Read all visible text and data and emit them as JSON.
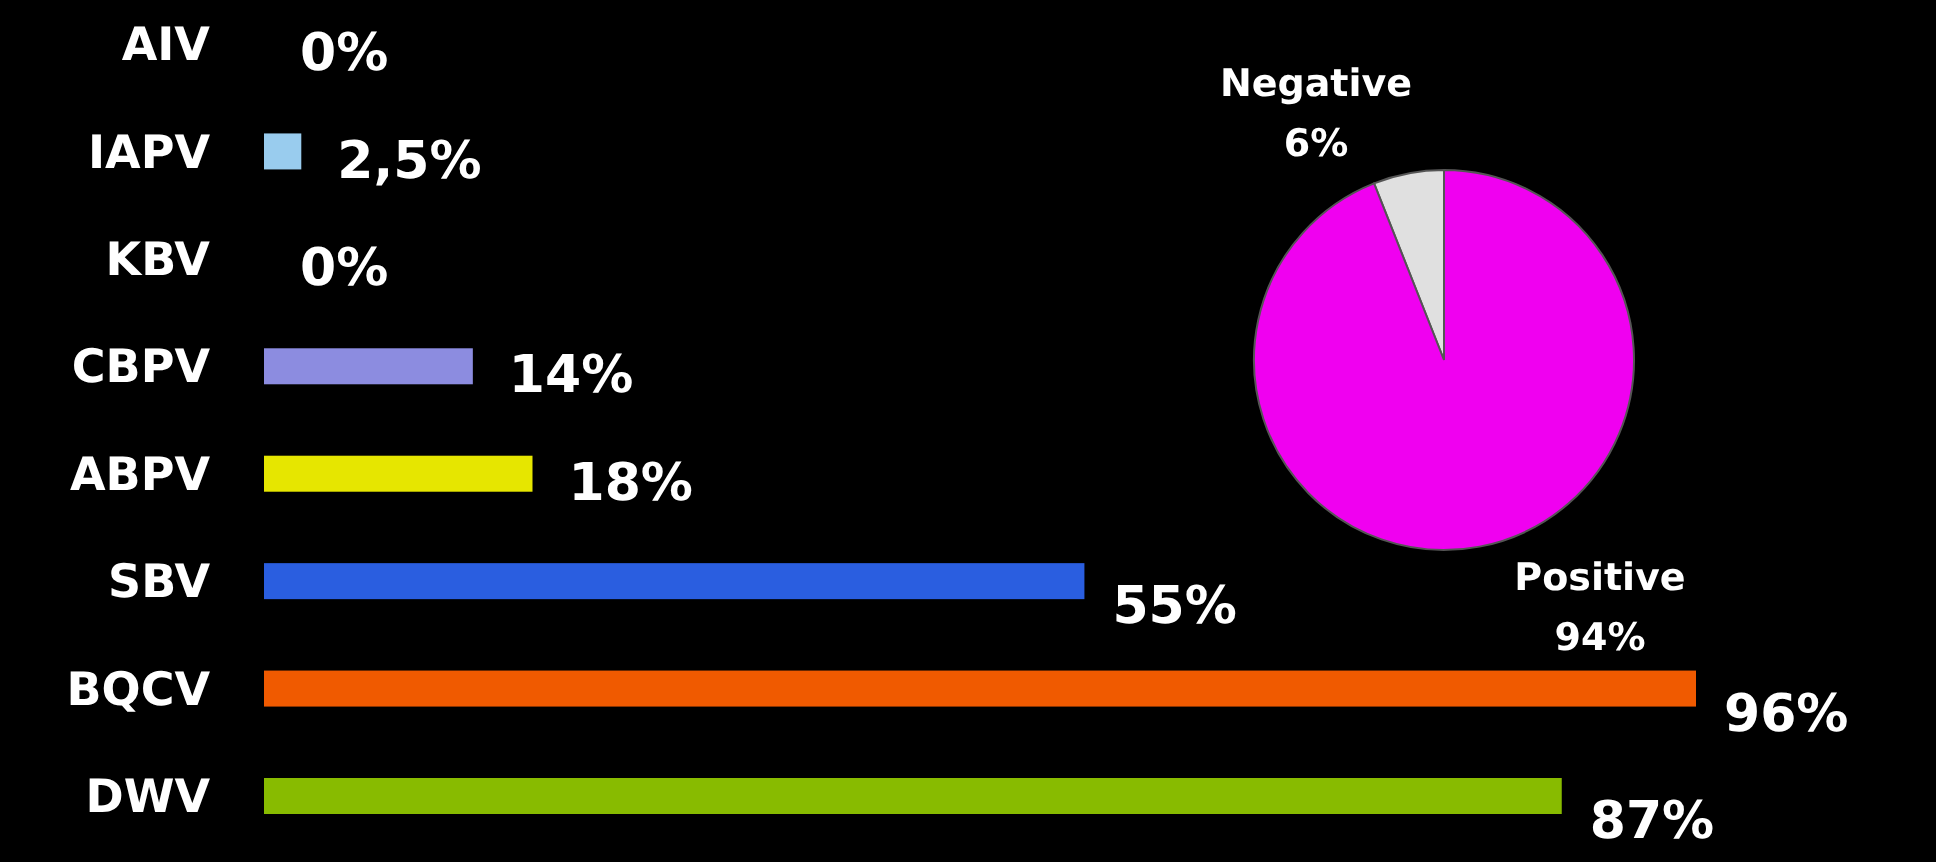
{
  "chart_data": [
    {
      "type": "bar",
      "orientation": "horizontal",
      "categories": [
        "AIV",
        "IAPV",
        "KBV",
        "CBPV",
        "ABPV",
        "SBV",
        "BQCV",
        "DWV"
      ],
      "values": [
        0,
        2.5,
        0,
        14,
        18,
        55,
        96,
        87
      ],
      "colors": [
        "#888888",
        "#99ccee",
        "#888888",
        "#8c8ce0",
        "#e6e600",
        "#2a5ee0",
        "#f05a00",
        "#88bb00"
      ],
      "value_labels": [
        "0%",
        "2,5%",
        "0%",
        "14%",
        "18%",
        "55%",
        "96%",
        "87%"
      ]
    },
    {
      "type": "pie",
      "categories": [
        "Negative",
        "Positive"
      ],
      "values": [
        6,
        94
      ],
      "colors": [
        "#e0e0e0",
        "#f000f0"
      ],
      "value_labels": [
        "6%",
        "94%"
      ]
    }
  ]
}
